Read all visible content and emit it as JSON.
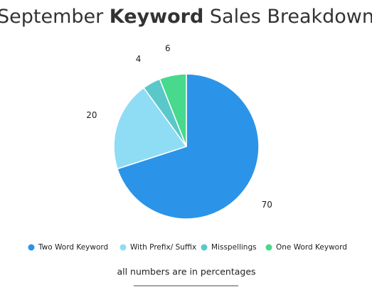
{
  "chart_data": {
    "type": "pie",
    "title": [
      "September ",
      "Keyword",
      " Sales Breakdown"
    ],
    "categories": [
      "Two Word Keyword",
      "With Prefix/ Suffix",
      "Misspellings",
      "One Word Keyword"
    ],
    "values": [
      70,
      20,
      4,
      6
    ],
    "colors": [
      "#2b94e8",
      "#8fdcf5",
      "#5ac8c8",
      "#47d98c"
    ],
    "note": "all numbers are in percentages"
  }
}
